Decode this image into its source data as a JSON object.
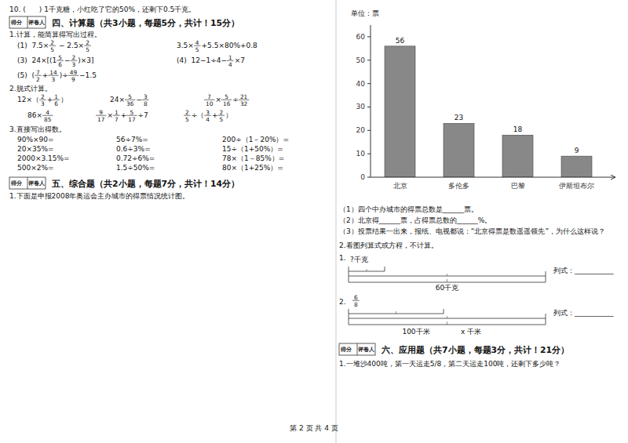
{
  "chart_data": {
    "type": "bar",
    "ylabel": "单位：票",
    "categories": [
      "北京",
      "多伦多",
      "巴黎",
      "伊斯坦布尔"
    ],
    "values": [
      56,
      23,
      18,
      9
    ],
    "color": "#888888",
    "ylim": [
      0,
      65
    ],
    "yticks": [
      0,
      10,
      20,
      30,
      40,
      50,
      60
    ],
    "grid": false,
    "data_labels": true,
    "annotations": [
      [
        [
          "10. (      ) 1千克糖，小红吃了它的50%，还剩下0.5千克。"
        ]
      ],
      [
        [
          "得分"
        ],
        [
          "评卷人"
        ],
        [
          "四、计算题（共3小题，每题5分，共计！15分）"
        ]
      ],
      [
        [
          "1.计算，能简算得写出过程。"
        ]
      ],
      [
        [
          "(1)  7.5×",
          [
            "2",
            "5"
          ],
          " − 2.5×",
          [
            "2",
            "5"
          ]
        ],
        [
          "3.5×",
          [
            "4",
            "5"
          ],
          "+5.5×80%+0.8"
        ]
      ],
      [
        [
          "(3)  24×",
          "[",
          "(1",
          [
            "5",
            "6"
          ],
          "−",
          [
            "2",
            "3"
          ],
          ")×3]"
        ],
        [
          "(4)  12−1÷4−",
          [
            "1",
            "4"
          ],
          "×7"
        ]
      ],
      [
        [
          "(5)  (",
          [
            "7",
            "2"
          ],
          "+",
          [
            "14",
            "3"
          ],
          ")÷",
          [
            "49",
            "9"
          ],
          "−1.5"
        ]
      ],
      [
        [
          "2.脱式计算。"
        ]
      ],
      [
        [
          "12×（",
          [
            "2",
            "3"
          ],
          "+",
          [
            "1",
            "6"
          ],
          "）"
        ],
        [
          "24×",
          [
            "5",
            "36"
          ],
          "−",
          [
            "3",
            "8"
          ]
        ],
        [
          [
            "7",
            "10"
          ],
          "×",
          [
            "5",
            "16"
          ],
          "÷",
          [
            "21",
            "32"
          ]
        ]
      ],
      [
        [
          "86×",
          [
            "4",
            "85"
          ]
        ],
        [
          [
            "9",
            "17"
          ],
          "×",
          [
            "1",
            "7"
          ],
          "+",
          [
            "5",
            "17"
          ],
          "÷7"
        ],
        [
          [
            "2",
            "5"
          ],
          "÷（",
          [
            "3",
            "4"
          ],
          "+",
          [
            "2",
            "5"
          ],
          "）"
        ]
      ],
      [
        [
          "3.直接写出得数。"
        ]
      ],
      [
        [
          "90%×90="
        ],
        [
          "56÷7%="
        ],
        [
          "200÷（1－20%）="
        ]
      ],
      [
        [
          "20×35%="
        ],
        [
          "0.6÷3%="
        ],
        [
          "15÷（1+50%）="
        ]
      ],
      [
        [
          "2000×3.15%="
        ],
        [
          "0.72÷6%="
        ],
        [
          "78×（1－85%）="
        ]
      ],
      [
        [
          "500×2%="
        ],
        [
          "1.5÷50%="
        ],
        [
          "80×（1+25%）="
        ]
      ],
      [
        [
          "得分"
        ],
        [
          "评卷人"
        ],
        [
          "五、综合题（共2小题，每题7分，共计！14分）"
        ]
      ],
      [
        [
          "1.下面是申报2008年奥运会主办城市的得票情况统计图。"
        ]
      ],
      [
        [
          "（1）四个中办城市的得票总数是______票。"
        ]
      ],
      [
        [
          "（2）北京得______票，占得票总数的______%。"
        ]
      ],
      [
        [
          "（3）投票结果一出来，报纸、电视都说：“北京得票是数遥遥领先”，为什么这样说？"
        ]
      ],
      [
        [
          "2.看图列算式或方程，不计算。"
        ]
      ],
      [
        [
          "1."
        ]
      ],
      [
        [
          "?千克"
        ]
      ],
      [
        [
          "60千克"
        ]
      ],
      [
        [
          "列式：___________"
        ]
      ],
      [
        [
          "2."
        ]
      ],
      [
        [
          [
            "6",
            "8"
          ]
        ]
      ],
      [
        [
          "100千米"
        ]
      ],
      [
        [
          "x 千米"
        ]
      ],
      [
        [
          "列式：___________"
        ]
      ],
      [
        [
          "得分"
        ],
        [
          "评卷人"
        ],
        [
          "六、应用题（共7小题，每题3分，共计！21分）"
        ]
      ],
      [
        [
          "1.一堆沙400吨，第一天运走5/8，第二天运走100吨，还剩下多少吨？"
        ]
      ],
      [
        [
          "第 2 页 共 4 页"
        ]
      ]
    ]
  }
}
